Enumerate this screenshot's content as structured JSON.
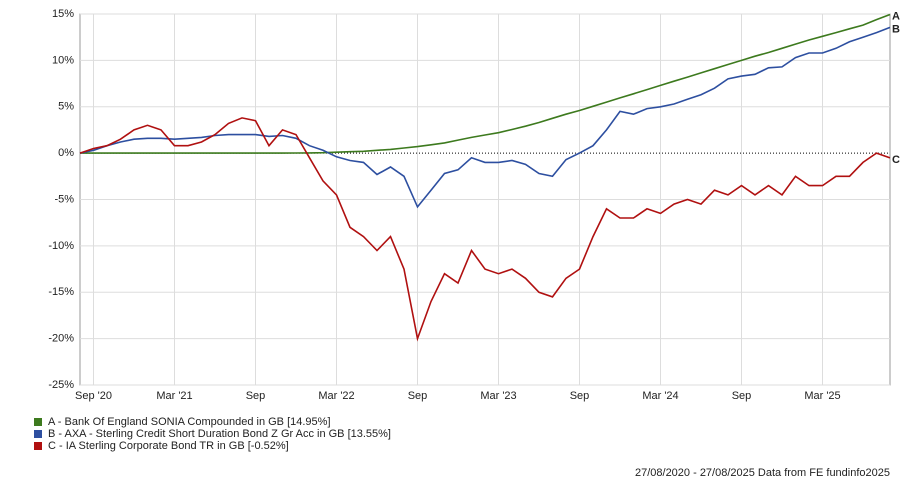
{
  "chart_data": {
    "type": "line",
    "x": [
      "2020-08",
      "2020-09",
      "2020-10",
      "2020-11",
      "2020-12",
      "2021-01",
      "2021-02",
      "2021-03",
      "2021-04",
      "2021-05",
      "2021-06",
      "2021-07",
      "2021-08",
      "2021-09",
      "2021-10",
      "2021-11",
      "2021-12",
      "2022-01",
      "2022-02",
      "2022-03",
      "2022-04",
      "2022-05",
      "2022-06",
      "2022-07",
      "2022-08",
      "2022-09",
      "2022-10",
      "2022-11",
      "2022-12",
      "2023-01",
      "2023-02",
      "2023-03",
      "2023-04",
      "2023-05",
      "2023-06",
      "2023-07",
      "2023-08",
      "2023-09",
      "2023-10",
      "2023-11",
      "2023-12",
      "2024-01",
      "2024-02",
      "2024-03",
      "2024-04",
      "2024-05",
      "2024-06",
      "2024-07",
      "2024-08",
      "2024-09",
      "2024-10",
      "2024-11",
      "2024-12",
      "2025-01",
      "2025-02",
      "2025-03",
      "2025-04",
      "2025-05",
      "2025-06",
      "2025-07",
      "2025-08"
    ],
    "series": [
      {
        "name": "A - Bank Of England SONIA Compounded in GB [14.95%]",
        "end_label": "A",
        "color": "#3d7a1e",
        "values": [
          0,
          0,
          0,
          0,
          0,
          0,
          0,
          0,
          0,
          0,
          0,
          0,
          0,
          0,
          0,
          0,
          0.01,
          0.02,
          0.05,
          0.1,
          0.15,
          0.2,
          0.3,
          0.4,
          0.55,
          0.7,
          0.9,
          1.1,
          1.4,
          1.7,
          1.95,
          2.2,
          2.55,
          2.9,
          3.3,
          3.75,
          4.2,
          4.6,
          5.05,
          5.5,
          5.95,
          6.4,
          6.85,
          7.3,
          7.75,
          8.2,
          8.65,
          9.1,
          9.55,
          10.0,
          10.45,
          10.85,
          11.3,
          11.75,
          12.2,
          12.6,
          13.0,
          13.4,
          13.8,
          14.4,
          14.95
        ]
      },
      {
        "name": "B - AXA - Sterling Credit Short Duration Bond Z Gr Acc in GB [13.55%]",
        "end_label": "B",
        "color": "#2d4fa0",
        "values": [
          0,
          0.3,
          0.8,
          1.2,
          1.5,
          1.6,
          1.6,
          1.5,
          1.6,
          1.7,
          1.9,
          2.0,
          2.0,
          2.0,
          1.8,
          1.9,
          1.6,
          0.8,
          0.3,
          -0.4,
          -0.8,
          -1.0,
          -2.3,
          -1.5,
          -2.5,
          -5.8,
          -4.0,
          -2.2,
          -1.8,
          -0.5,
          -1.0,
          -1.0,
          -0.8,
          -1.2,
          -2.2,
          -2.5,
          -0.7,
          0.0,
          0.8,
          2.5,
          4.5,
          4.2,
          4.8,
          5.0,
          5.3,
          5.8,
          6.3,
          7.0,
          8.0,
          8.3,
          8.5,
          9.2,
          9.3,
          10.3,
          10.8,
          10.8,
          11.3,
          12.0,
          12.5,
          13.0,
          13.55
        ]
      },
      {
        "name": "C - IA Sterling Corporate Bond TR in GB [-0.52%]",
        "end_label": "C",
        "color": "#b01010",
        "values": [
          0,
          0.5,
          0.8,
          1.5,
          2.5,
          3.0,
          2.5,
          0.8,
          0.8,
          1.2,
          2.0,
          3.2,
          3.8,
          3.5,
          0.8,
          2.5,
          2.0,
          -0.5,
          -3.0,
          -4.5,
          -8.0,
          -9.0,
          -10.5,
          -9.0,
          -12.5,
          -20.0,
          -16.0,
          -13.0,
          -14.0,
          -10.5,
          -12.5,
          -13.0,
          -12.5,
          -13.5,
          -15.0,
          -15.5,
          -13.5,
          -12.5,
          -9.0,
          -6.0,
          -7.0,
          -7.0,
          -6.0,
          -6.5,
          -5.5,
          -5.0,
          -5.5,
          -4.0,
          -4.5,
          -3.5,
          -4.5,
          -3.5,
          -4.5,
          -2.5,
          -3.5,
          -3.5,
          -2.5,
          -2.5,
          -1.0,
          0.0,
          -0.52
        ]
      }
    ],
    "xlim": [
      "2020-08",
      "2025-08"
    ],
    "xticks": [
      {
        "value": "2020-09",
        "label": "Sep '20"
      },
      {
        "value": "2021-03",
        "label": "Mar '21"
      },
      {
        "value": "2021-09",
        "label": "Sep"
      },
      {
        "value": "2022-03",
        "label": "Mar '22"
      },
      {
        "value": "2022-09",
        "label": "Sep"
      },
      {
        "value": "2023-03",
        "label": "Mar '23"
      },
      {
        "value": "2023-09",
        "label": "Sep"
      },
      {
        "value": "2024-03",
        "label": "Mar '24"
      },
      {
        "value": "2024-09",
        "label": "Sep"
      },
      {
        "value": "2025-03",
        "label": "Mar '25"
      }
    ],
    "ylim": [
      -25,
      15
    ],
    "yticks": [
      {
        "value": -25,
        "label": "-25%"
      },
      {
        "value": -20,
        "label": "-20%"
      },
      {
        "value": -15,
        "label": "-15%"
      },
      {
        "value": -10,
        "label": "-10%"
      },
      {
        "value": -5,
        "label": "-5%"
      },
      {
        "value": 0,
        "label": "0%"
      },
      {
        "value": 5,
        "label": "5%"
      },
      {
        "value": 10,
        "label": "10%"
      },
      {
        "value": 15,
        "label": "15%"
      }
    ],
    "grid": true,
    "footer": "27/08/2020 - 27/08/2025 Data from FE fundinfo2025"
  }
}
